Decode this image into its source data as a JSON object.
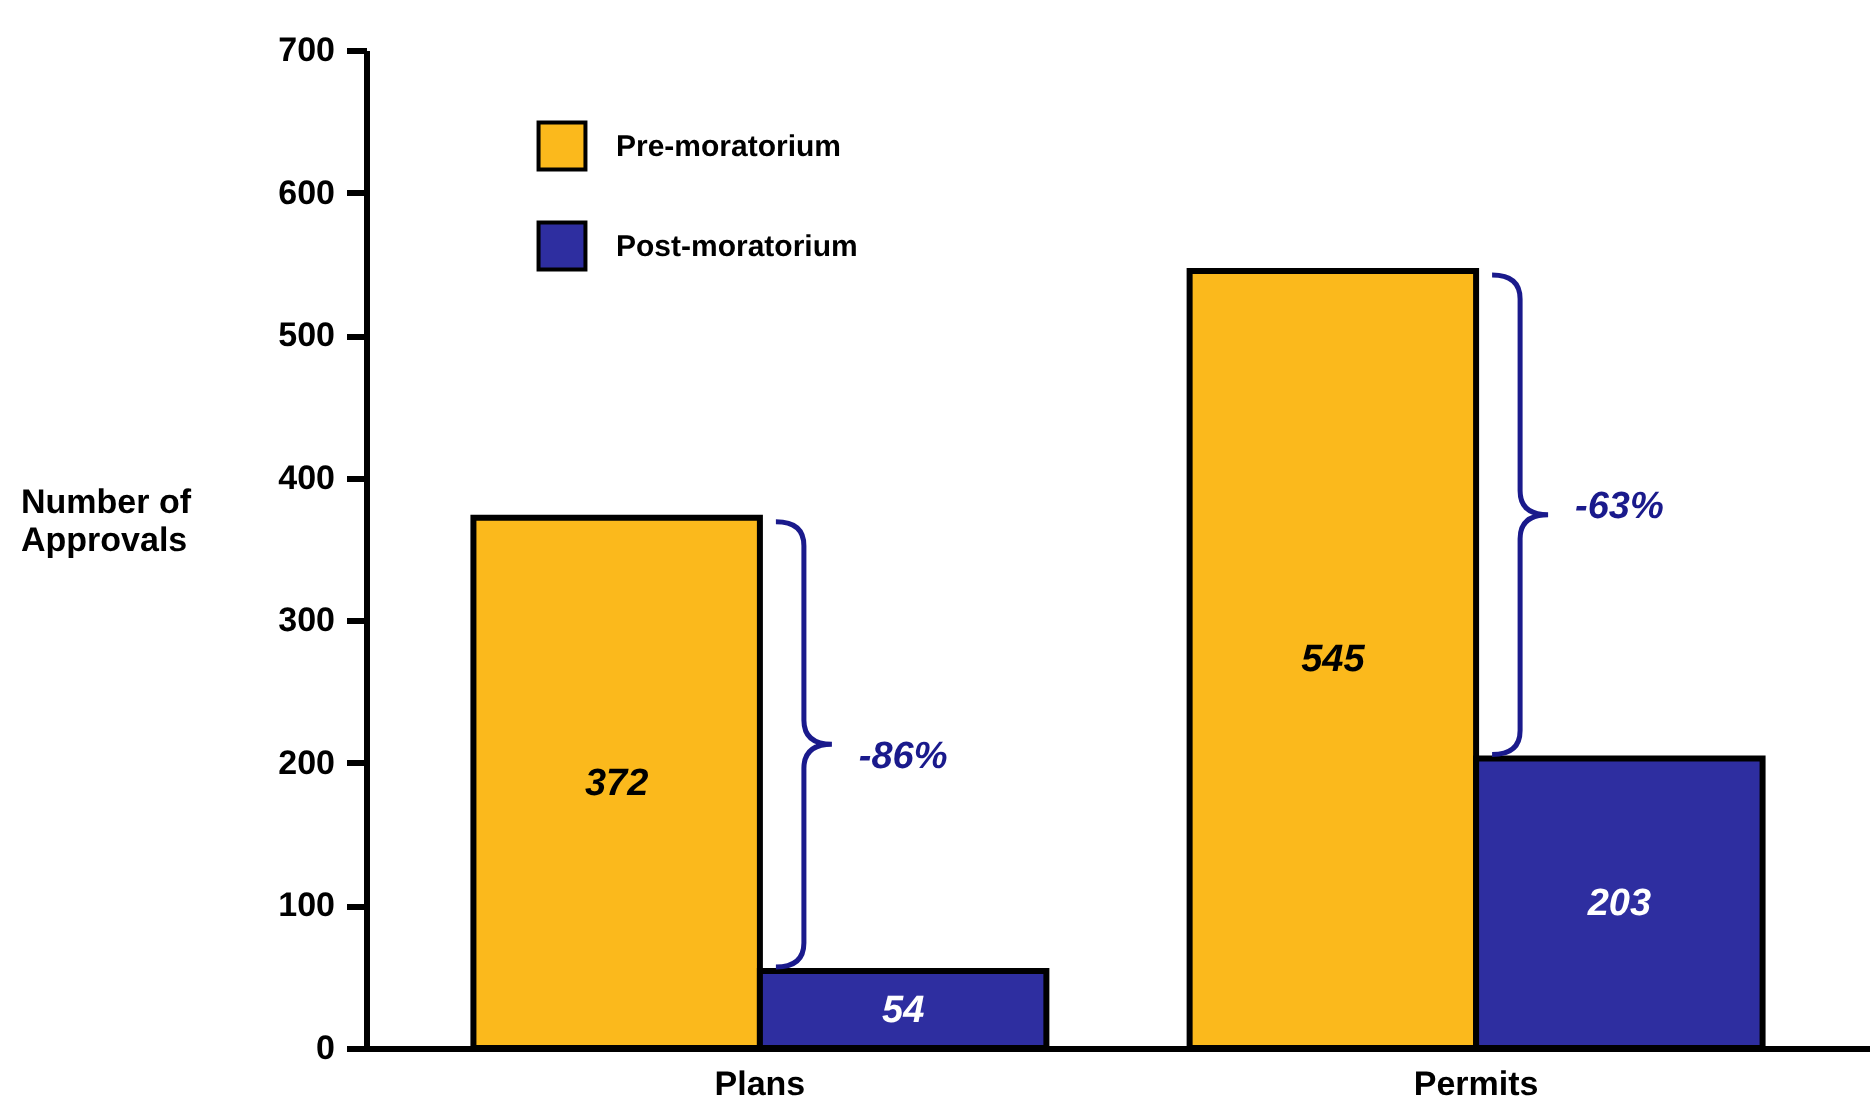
{
  "chart_data": {
    "type": "bar",
    "ylabel": "Number of\nApprovals",
    "categories": [
      "Plans",
      "Permits"
    ],
    "series": [
      {
        "name": "Pre-moratorium",
        "color": "#fbb91c",
        "values": [
          372,
          545
        ]
      },
      {
        "name": "Post-moratorium",
        "color": "#2e2ea0",
        "values": [
          54,
          203
        ]
      }
    ],
    "ylim": [
      0,
      700
    ],
    "yticks": [
      0,
      100,
      200,
      300,
      400,
      500,
      600,
      700
    ],
    "grid": false,
    "legend": "top left",
    "data_labels": true,
    "annotations": [
      {
        "text": "-86%",
        "x": "Plans",
        "y": 205
      },
      {
        "text": "-63%",
        "x": "Permits",
        "y": 380
      }
    ]
  }
}
